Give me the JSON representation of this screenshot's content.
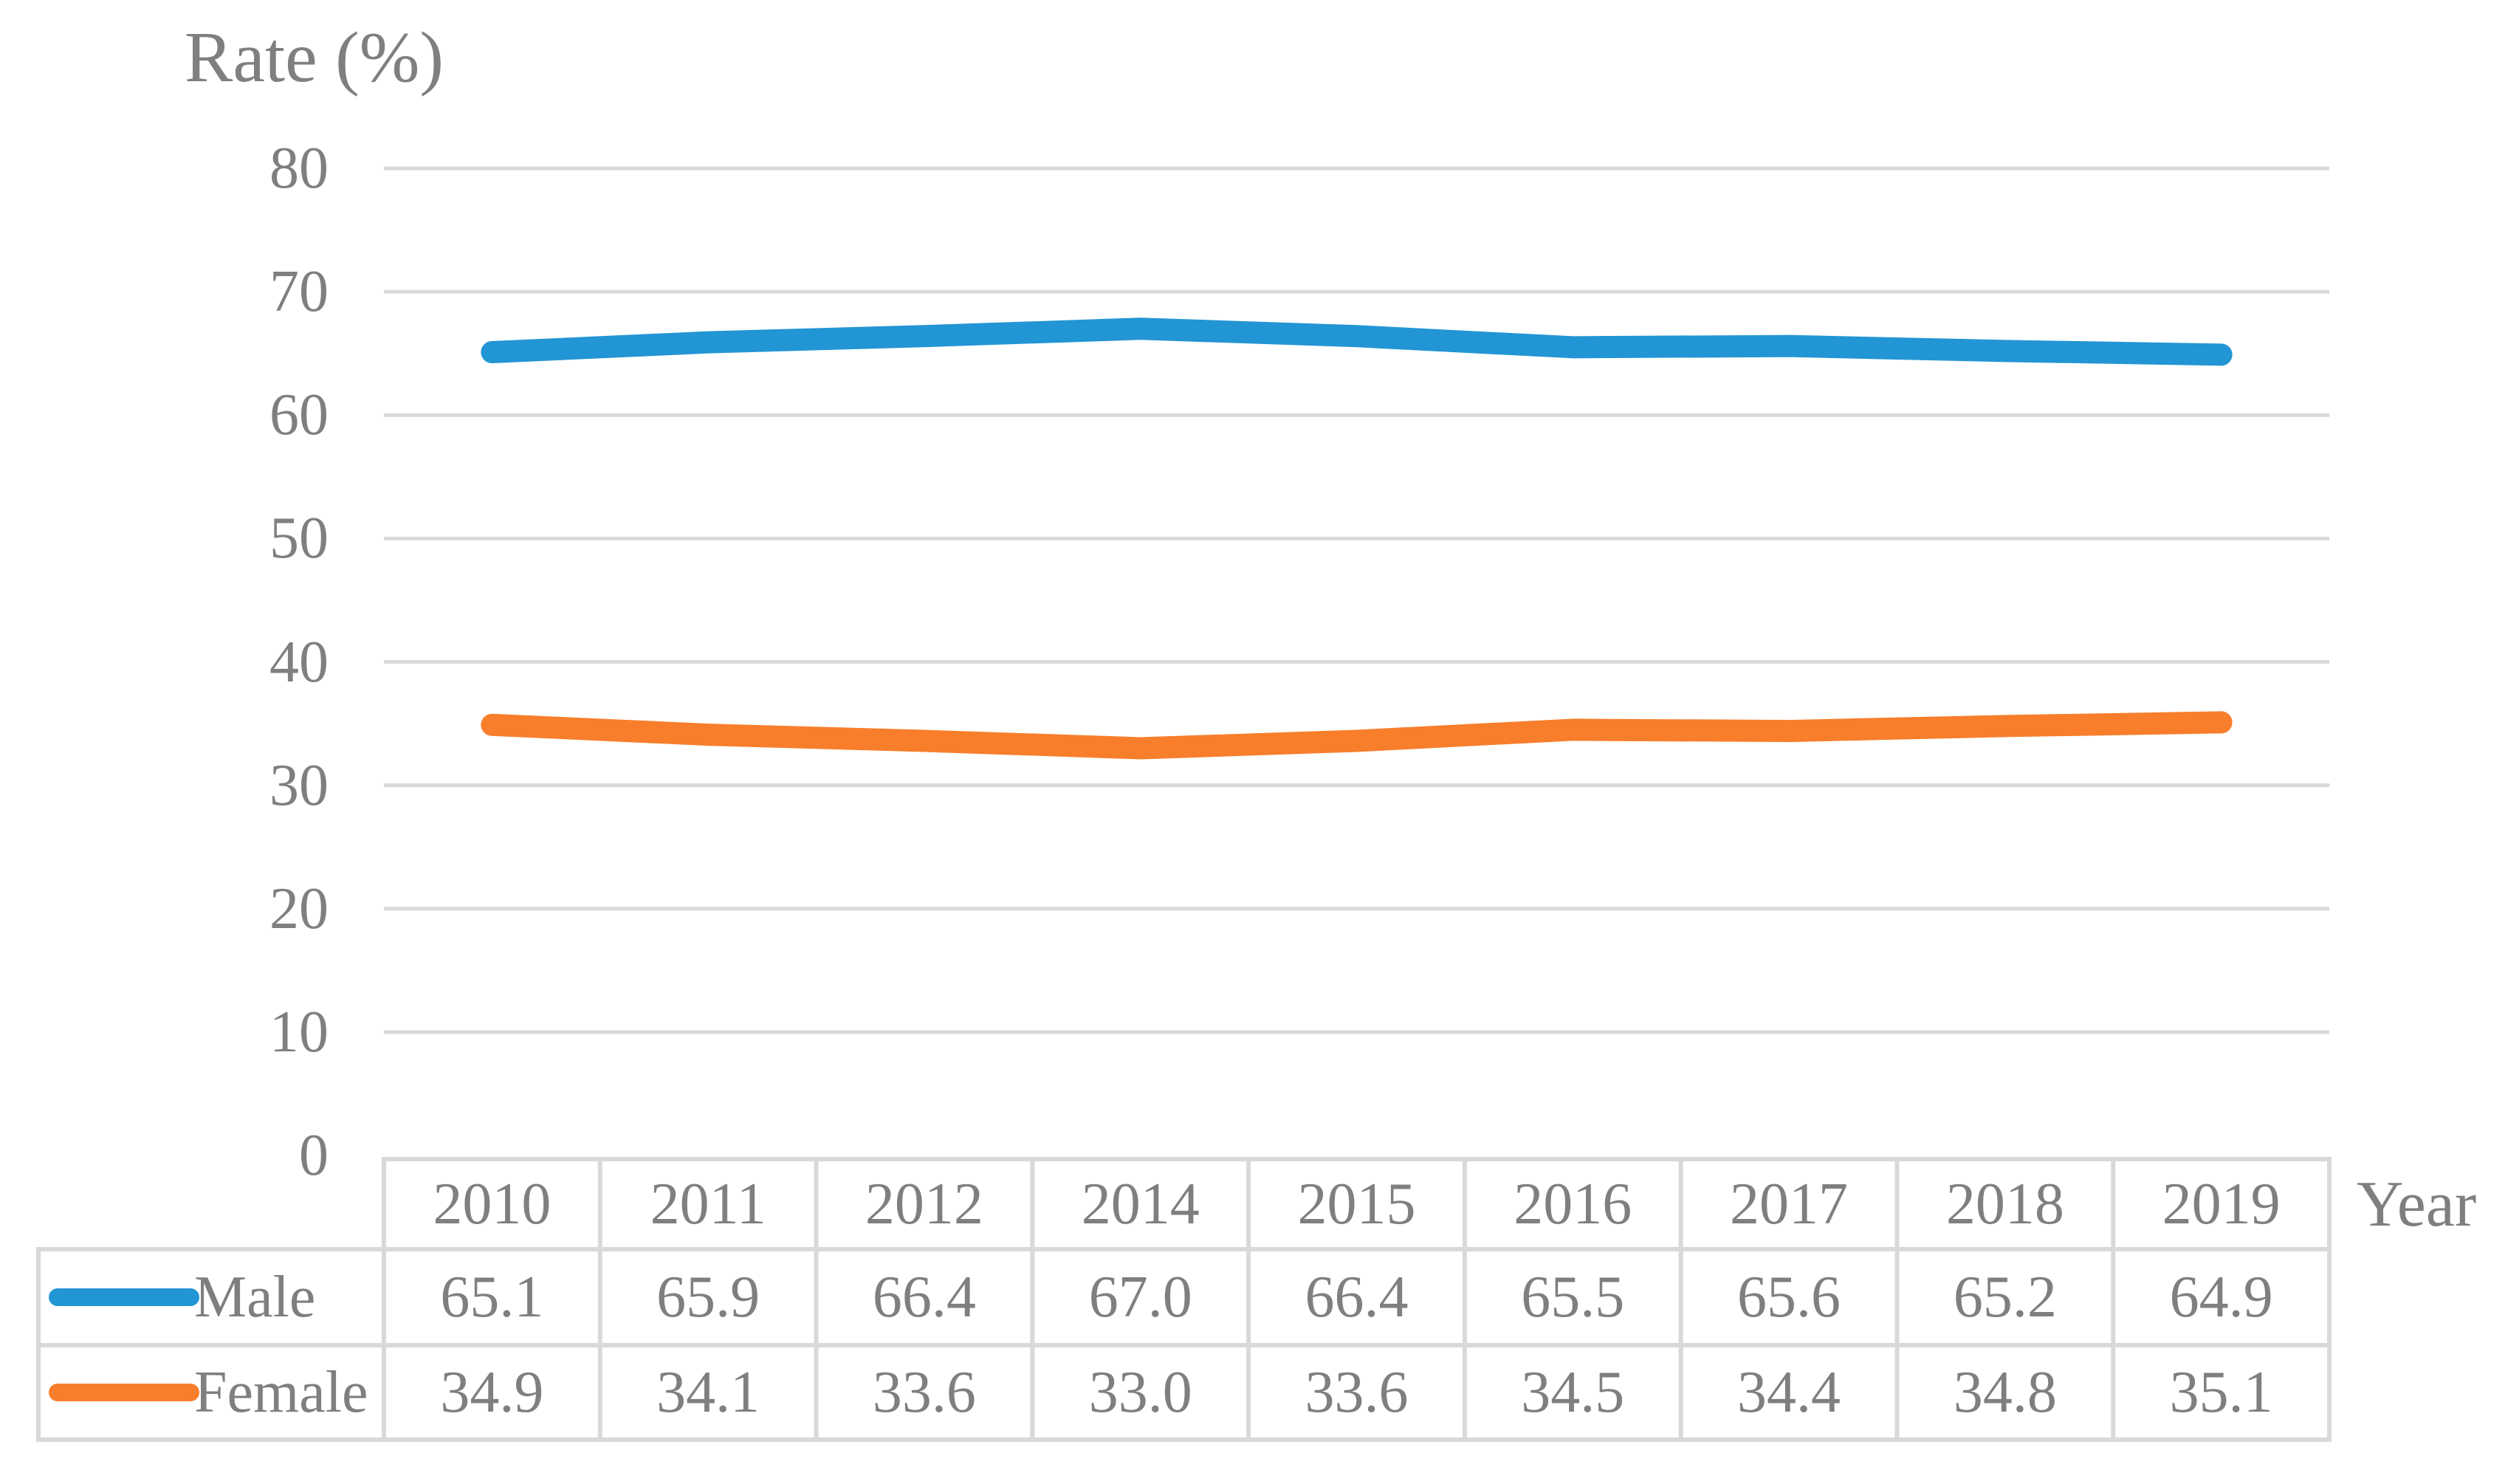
{
  "chart": {
    "y_axis_title": "Rate (%)",
    "x_axis_title": "Year",
    "colors": {
      "male": "#2295d4",
      "female": "#f87e2b",
      "grid": "#d9d9d9",
      "border": "#d9d9d9",
      "text": "#7f7f7f"
    }
  },
  "chart_data": {
    "type": "line",
    "title": "",
    "xlabel": "Year",
    "ylabel": "Rate (%)",
    "categories": [
      "2010",
      "2011",
      "2012",
      "2014",
      "2015",
      "2016",
      "2017",
      "2018",
      "2019"
    ],
    "series": [
      {
        "name": "Male",
        "color_key": "male",
        "values": [
          65.1,
          65.9,
          66.4,
          67.0,
          66.4,
          65.5,
          65.6,
          65.2,
          64.9
        ],
        "labels": [
          "65.1",
          "65.9",
          "66.4",
          "67.0",
          "66.4",
          "65.5",
          "65.6",
          "65.2",
          "64.9"
        ]
      },
      {
        "name": "Female",
        "color_key": "female",
        "values": [
          34.9,
          34.1,
          33.6,
          33.0,
          33.6,
          34.5,
          34.4,
          34.8,
          35.1
        ],
        "labels": [
          "34.9",
          "34.1",
          "33.6",
          "33.0",
          "33.6",
          "34.5",
          "34.4",
          "34.8",
          "35.1"
        ]
      }
    ],
    "ylim": [
      0,
      80
    ],
    "yticks": [
      0,
      10,
      20,
      30,
      40,
      50,
      60,
      70,
      80
    ],
    "ytick_labels": [
      "0",
      "10",
      "20",
      "30",
      "40",
      "50",
      "60",
      "70",
      "80"
    ],
    "grid": "horizontal",
    "legend_position": "data-table-left-column",
    "data_table": true
  }
}
